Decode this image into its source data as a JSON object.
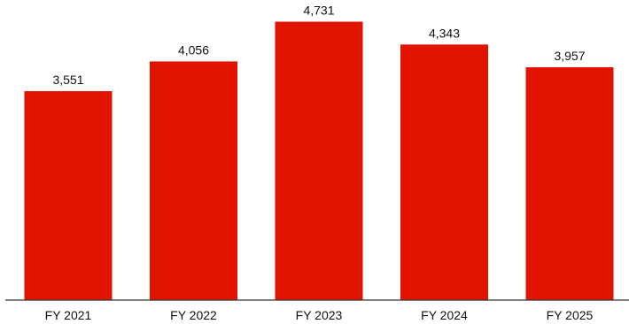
{
  "chart_data": {
    "type": "bar",
    "title": "",
    "xlabel": "",
    "ylabel": "",
    "categories": [
      "FY 2021",
      "FY 2022",
      "FY 2023",
      "FY 2024",
      "FY 2025"
    ],
    "values": [
      3551,
      4056,
      4731,
      4343,
      3957
    ],
    "value_labels": [
      "3,551",
      "4,056",
      "4,731",
      "4,343",
      "3,957"
    ],
    "ylim": [
      0,
      5100
    ],
    "grid": false,
    "legend": "none",
    "colors": {
      "bar": "#e11400",
      "axis": "#333333",
      "text": "#111111",
      "background": "#ffffff"
    }
  }
}
